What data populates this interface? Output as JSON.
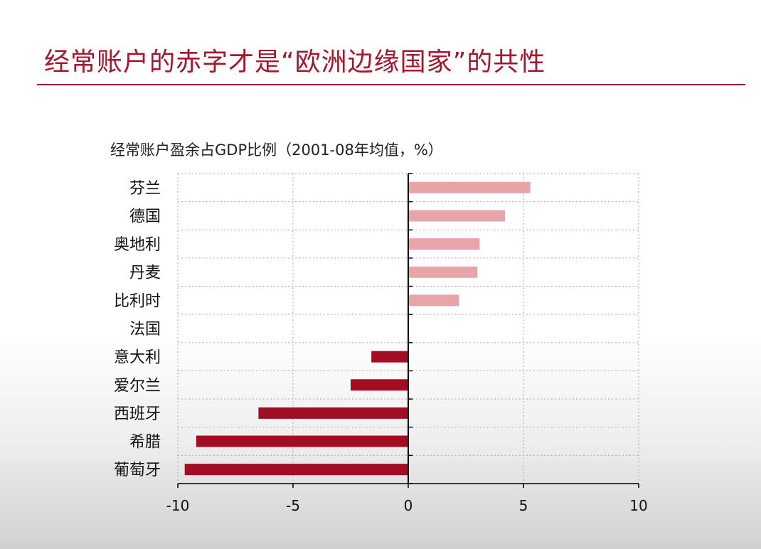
{
  "slide": {
    "title": "经常账户的赤字才是“欧洲边缘国家”的共性"
  },
  "colors": {
    "title": "#a6172c",
    "positive_bar": "#e8a5a9",
    "negative_bar": "#a30d24",
    "grid": "#aaaaaa",
    "axis": "#000000"
  },
  "chart_data": {
    "type": "bar",
    "orientation": "horizontal",
    "title": "经常账户盈余占GDP比例（2001-08年均值，%）",
    "categories": [
      "芬兰",
      "德国",
      "奥地利",
      "丹麦",
      "比利时",
      "法国",
      "意大利",
      "爱尔兰",
      "西班牙",
      "希腊",
      "葡萄牙"
    ],
    "values": [
      5.3,
      4.2,
      3.1,
      3.0,
      2.2,
      0.0,
      -1.6,
      -2.5,
      -6.5,
      -9.2,
      -9.7
    ],
    "xlim": [
      -10,
      10
    ],
    "xticks": [
      "-10",
      "-5",
      "0",
      "5",
      "10"
    ],
    "xlabel": "",
    "ylabel": "",
    "grid": "dotted",
    "legend": "none"
  }
}
